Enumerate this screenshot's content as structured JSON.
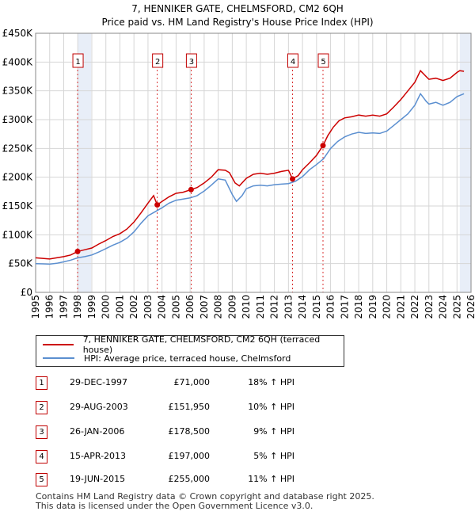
{
  "title": {
    "line1": "7, HENNIKER GATE, CHELMSFORD, CM2 6QH",
    "line2": "Price paid vs. HM Land Registry's House Price Index (HPI)"
  },
  "colors": {
    "price_line": "#cc0000",
    "hpi_line": "#5b8fd0",
    "shade": "#e8eef8",
    "marker_box": "#c00000"
  },
  "chart_data": {
    "type": "line",
    "title": "7, HENNIKER GATE, CHELMSFORD, CM2 6QH — Price paid vs. HM Land Registry's House Price Index (HPI)",
    "xlabel": "",
    "ylabel": "",
    "xlim": [
      1995,
      2026
    ],
    "ylim": [
      0,
      450000
    ],
    "x_ticks": [
      "1995",
      "1996",
      "1997",
      "1998",
      "1999",
      "2000",
      "2001",
      "2002",
      "2003",
      "2004",
      "2005",
      "2006",
      "2007",
      "2008",
      "2009",
      "2010",
      "2011",
      "2012",
      "2013",
      "2014",
      "2015",
      "2016",
      "2017",
      "2018",
      "2019",
      "2020",
      "2021",
      "2022",
      "2023",
      "2024",
      "2025",
      "2026"
    ],
    "y_ticks": [
      {
        "value": 0,
        "label": "£0"
      },
      {
        "value": 50000,
        "label": "£50K"
      },
      {
        "value": 100000,
        "label": "£100K"
      },
      {
        "value": 150000,
        "label": "£150K"
      },
      {
        "value": 200000,
        "label": "£200K"
      },
      {
        "value": 250000,
        "label": "£250K"
      },
      {
        "value": 300000,
        "label": "£300K"
      },
      {
        "value": 350000,
        "label": "£350K"
      },
      {
        "value": 400000,
        "label": "£400K"
      },
      {
        "value": 450000,
        "label": "£450K"
      }
    ],
    "shaded_ranges": [
      [
        1997.99,
        1998.95
      ],
      [
        2025.2,
        2026
      ]
    ],
    "series": [
      {
        "name": "7, HENNIKER GATE, CHELMSFORD, CM2 6QH (terraced house)",
        "color": "#cc0000",
        "points": [
          [
            1995.0,
            60000
          ],
          [
            1995.5,
            59000
          ],
          [
            1996.0,
            58000
          ],
          [
            1996.5,
            60000
          ],
          [
            1997.0,
            62000
          ],
          [
            1997.5,
            65000
          ],
          [
            1997.99,
            71000
          ],
          [
            1998.5,
            74000
          ],
          [
            1999.0,
            77000
          ],
          [
            1999.5,
            84000
          ],
          [
            2000.0,
            90000
          ],
          [
            2000.5,
            97000
          ],
          [
            2001.0,
            102000
          ],
          [
            2001.5,
            110000
          ],
          [
            2002.0,
            122000
          ],
          [
            2002.5,
            138000
          ],
          [
            2003.0,
            155000
          ],
          [
            2003.4,
            168000
          ],
          [
            2003.66,
            151950
          ],
          [
            2004.0,
            158000
          ],
          [
            2004.5,
            166000
          ],
          [
            2005.0,
            172000
          ],
          [
            2005.5,
            174000
          ],
          [
            2006.07,
            178500
          ],
          [
            2006.5,
            182000
          ],
          [
            2007.0,
            190000
          ],
          [
            2007.5,
            200000
          ],
          [
            2008.0,
            213000
          ],
          [
            2008.5,
            212000
          ],
          [
            2008.8,
            208000
          ],
          [
            2009.2,
            190000
          ],
          [
            2009.5,
            185000
          ],
          [
            2010.0,
            198000
          ],
          [
            2010.5,
            205000
          ],
          [
            2011.0,
            207000
          ],
          [
            2011.5,
            205000
          ],
          [
            2012.0,
            207000
          ],
          [
            2012.5,
            210000
          ],
          [
            2013.0,
            212000
          ],
          [
            2013.29,
            197000
          ],
          [
            2013.7,
            203000
          ],
          [
            2014.0,
            213000
          ],
          [
            2014.5,
            225000
          ],
          [
            2015.0,
            238000
          ],
          [
            2015.46,
            255000
          ],
          [
            2015.8,
            272000
          ],
          [
            2016.2,
            287000
          ],
          [
            2016.6,
            298000
          ],
          [
            2017.0,
            303000
          ],
          [
            2017.5,
            305000
          ],
          [
            2018.0,
            308000
          ],
          [
            2018.5,
            306000
          ],
          [
            2019.0,
            308000
          ],
          [
            2019.5,
            306000
          ],
          [
            2020.0,
            310000
          ],
          [
            2020.5,
            322000
          ],
          [
            2021.0,
            335000
          ],
          [
            2021.5,
            350000
          ],
          [
            2022.0,
            365000
          ],
          [
            2022.4,
            385000
          ],
          [
            2022.8,
            375000
          ],
          [
            2023.0,
            370000
          ],
          [
            2023.5,
            372000
          ],
          [
            2024.0,
            368000
          ],
          [
            2024.5,
            372000
          ],
          [
            2025.0,
            382000
          ],
          [
            2025.2,
            385000
          ],
          [
            2025.5,
            384000
          ]
        ]
      },
      {
        "name": "HPI: Average price, terraced house, Chelmsford",
        "color": "#5b8fd0",
        "points": [
          [
            1995.0,
            50000
          ],
          [
            1995.5,
            49500
          ],
          [
            1996.0,
            49000
          ],
          [
            1996.5,
            50500
          ],
          [
            1997.0,
            53000
          ],
          [
            1997.5,
            56000
          ],
          [
            1998.0,
            60000
          ],
          [
            1998.5,
            62000
          ],
          [
            1999.0,
            65000
          ],
          [
            1999.5,
            70000
          ],
          [
            2000.0,
            76000
          ],
          [
            2000.5,
            82000
          ],
          [
            2001.0,
            87000
          ],
          [
            2001.5,
            94000
          ],
          [
            2002.0,
            105000
          ],
          [
            2002.5,
            120000
          ],
          [
            2003.0,
            133000
          ],
          [
            2003.5,
            140000
          ],
          [
            2004.0,
            147000
          ],
          [
            2004.5,
            155000
          ],
          [
            2005.0,
            160000
          ],
          [
            2005.5,
            162000
          ],
          [
            2006.0,
            164000
          ],
          [
            2006.5,
            168000
          ],
          [
            2007.0,
            176000
          ],
          [
            2007.5,
            186000
          ],
          [
            2008.0,
            197000
          ],
          [
            2008.5,
            195000
          ],
          [
            2009.0,
            170000
          ],
          [
            2009.3,
            158000
          ],
          [
            2009.7,
            168000
          ],
          [
            2010.0,
            180000
          ],
          [
            2010.5,
            185000
          ],
          [
            2011.0,
            186000
          ],
          [
            2011.5,
            185000
          ],
          [
            2012.0,
            187000
          ],
          [
            2012.5,
            188000
          ],
          [
            2013.0,
            189000
          ],
          [
            2013.5,
            193000
          ],
          [
            2014.0,
            201000
          ],
          [
            2014.5,
            213000
          ],
          [
            2015.0,
            222000
          ],
          [
            2015.5,
            232000
          ],
          [
            2016.0,
            250000
          ],
          [
            2016.5,
            262000
          ],
          [
            2017.0,
            270000
          ],
          [
            2017.5,
            275000
          ],
          [
            2018.0,
            278000
          ],
          [
            2018.5,
            276000
          ],
          [
            2019.0,
            277000
          ],
          [
            2019.5,
            276000
          ],
          [
            2020.0,
            280000
          ],
          [
            2020.5,
            290000
          ],
          [
            2021.0,
            300000
          ],
          [
            2021.5,
            310000
          ],
          [
            2022.0,
            325000
          ],
          [
            2022.4,
            345000
          ],
          [
            2022.8,
            332000
          ],
          [
            2023.0,
            327000
          ],
          [
            2023.5,
            330000
          ],
          [
            2024.0,
            325000
          ],
          [
            2024.5,
            330000
          ],
          [
            2025.0,
            340000
          ],
          [
            2025.5,
            345000
          ]
        ]
      }
    ],
    "sales": [
      {
        "id": "1",
        "x": 1997.99,
        "price": 71000
      },
      {
        "id": "2",
        "x": 2003.66,
        "price": 151950
      },
      {
        "id": "3",
        "x": 2006.07,
        "price": 178500
      },
      {
        "id": "4",
        "x": 2013.29,
        "price": 197000
      },
      {
        "id": "5",
        "x": 2015.46,
        "price": 255000
      }
    ]
  },
  "legend": {
    "items": [
      {
        "label": "7, HENNIKER GATE, CHELMSFORD, CM2 6QH (terraced house)",
        "color": "#cc0000"
      },
      {
        "label": "HPI: Average price, terraced house, Chelmsford",
        "color": "#5b8fd0"
      }
    ]
  },
  "transactions": [
    {
      "num": "1",
      "date": "29-DEC-1997",
      "price": "£71,000",
      "hpi": "18% ↑ HPI"
    },
    {
      "num": "2",
      "date": "29-AUG-2003",
      "price": "£151,950",
      "hpi": "10% ↑ HPI"
    },
    {
      "num": "3",
      "date": "26-JAN-2006",
      "price": "£178,500",
      "hpi": "9% ↑ HPI"
    },
    {
      "num": "4",
      "date": "15-APR-2013",
      "price": "£197,000",
      "hpi": "5% ↑ HPI"
    },
    {
      "num": "5",
      "date": "19-JUN-2015",
      "price": "£255,000",
      "hpi": "11% ↑ HPI"
    }
  ],
  "footer": {
    "line1": "Contains HM Land Registry data © Crown copyright and database right 2025.",
    "line2": "This data is licensed under the Open Government Licence v3.0."
  }
}
